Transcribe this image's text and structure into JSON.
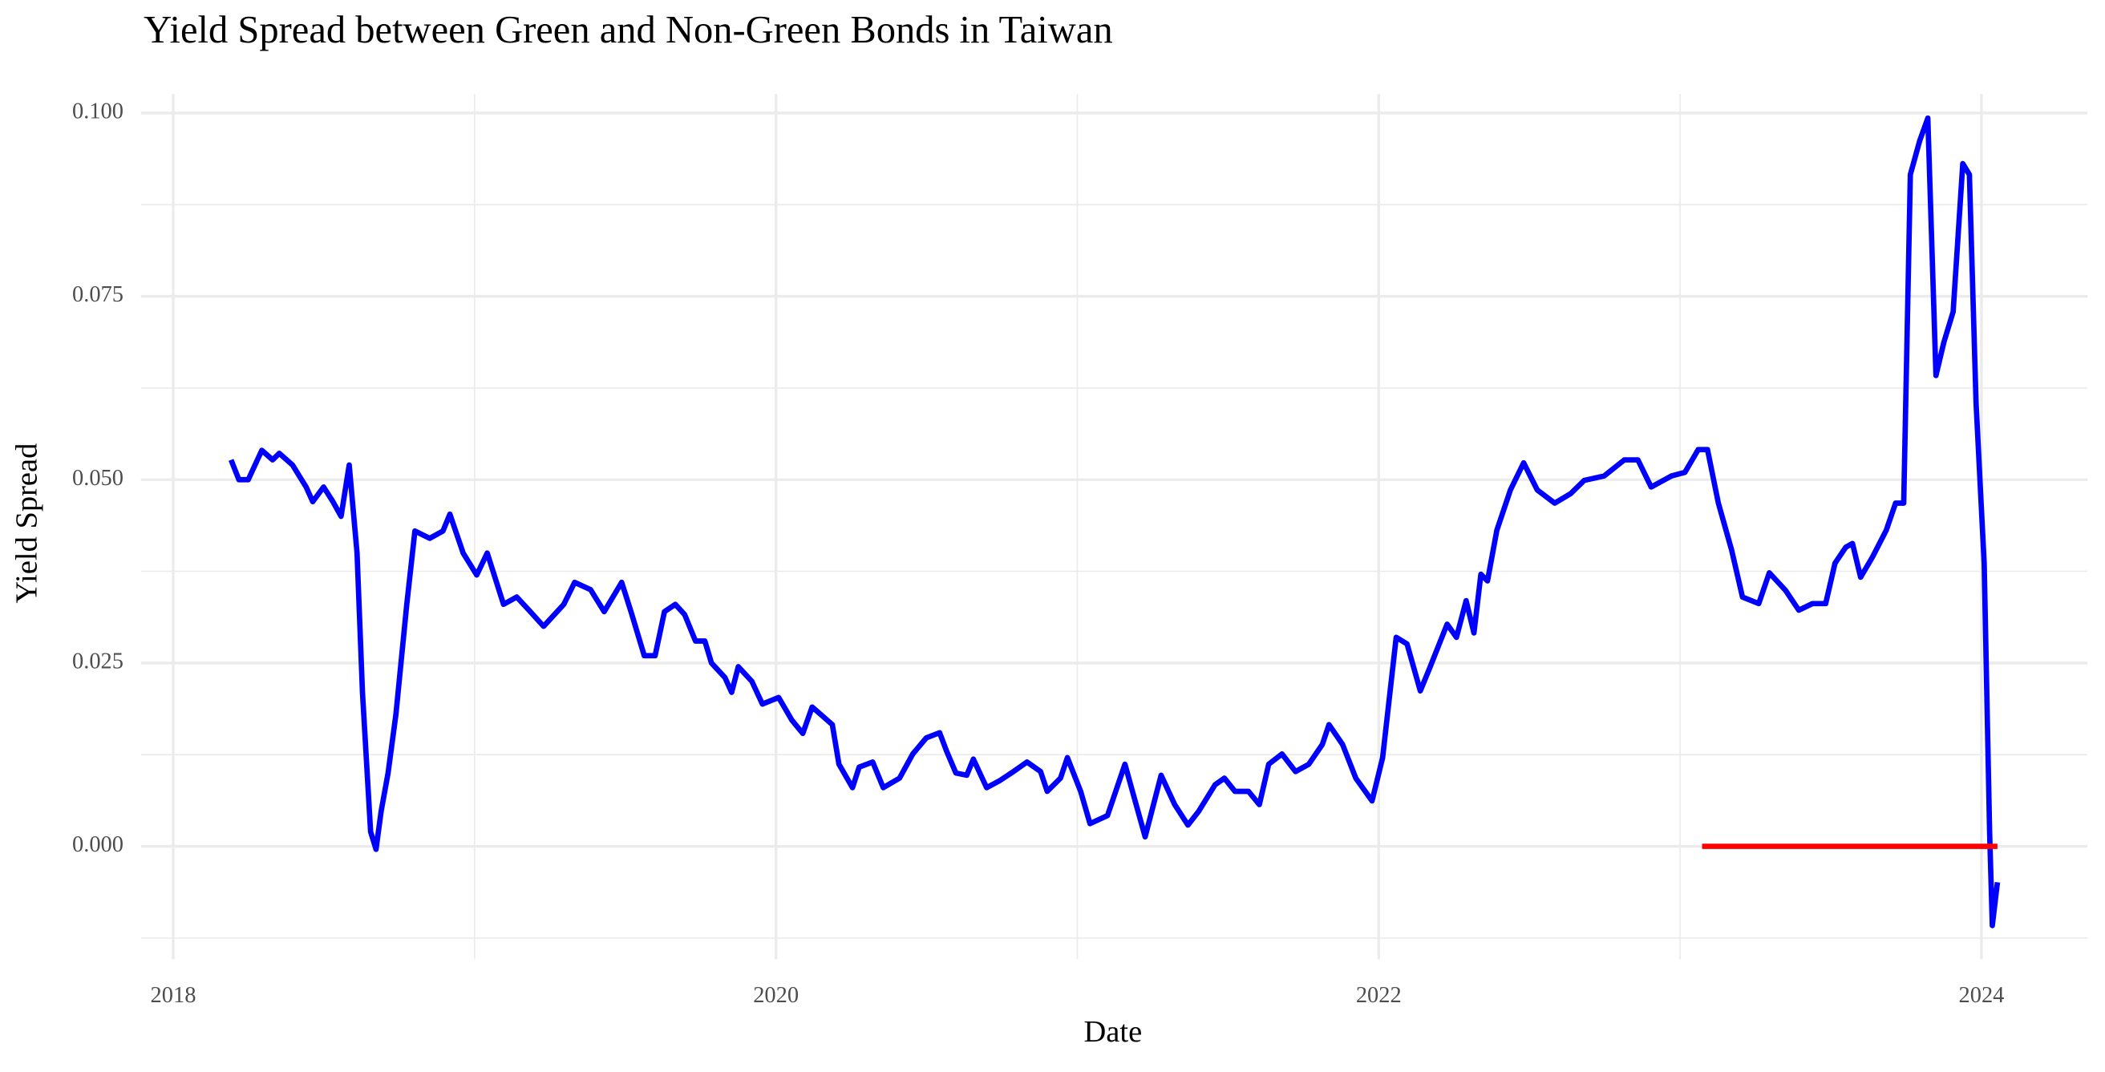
{
  "chart_data": {
    "type": "line",
    "title": "Yield Spread between Green and Non-Green Bonds in Taiwan",
    "xlabel": "Date",
    "ylabel": "Yield Spread",
    "grid": true,
    "xlim": [
      2017.893,
      2024.352
    ],
    "ylim": [
      -0.0154,
      0.1026
    ],
    "xticks": [
      2018,
      2020,
      2022,
      2024
    ],
    "minor_xticks": [
      2019,
      2021,
      2023
    ],
    "yticks": [
      {
        "value": 0,
        "label": "0.000"
      },
      0.025,
      {
        "value": 0.05,
        "label": "0.050"
      },
      0.075,
      {
        "value": 0.1,
        "label": "0.100"
      }
    ],
    "minor_yticks": [
      -0.0125,
      0.0125,
      0.0375,
      0.0625,
      0.0875
    ],
    "series": [
      {
        "color": "#0000ff",
        "x": [
          2018.192,
          2018.218,
          2018.249,
          2018.294,
          2018.33,
          2018.352,
          2018.396,
          2018.441,
          2018.463,
          2018.499,
          2018.53,
          2018.557,
          2018.584,
          2018.61,
          2018.628,
          2018.655,
          2018.673,
          2018.69,
          2018.713,
          2018.739,
          2018.775,
          2018.802,
          2018.851,
          2018.895,
          2018.918,
          2018.962,
          2019.007,
          2019.042,
          2019.096,
          2019.14,
          2019.185,
          2019.229,
          2019.296,
          2019.332,
          2019.385,
          2019.43,
          2019.488,
          2019.519,
          2019.563,
          2019.599,
          2019.63,
          2019.666,
          2019.697,
          2019.733,
          2019.764,
          2019.786,
          2019.831,
          2019.853,
          2019.875,
          2019.92,
          2019.955,
          2020.009,
          2020.053,
          2020.089,
          2020.12,
          2020.151,
          2020.187,
          2020.209,
          2020.254,
          2020.276,
          2020.321,
          2020.356,
          2020.41,
          2020.454,
          2020.499,
          2020.543,
          2020.566,
          2020.597,
          2020.633,
          2020.655,
          2020.699,
          2020.744,
          2020.788,
          2020.833,
          2020.878,
          2020.9,
          2020.944,
          2020.967,
          2021.011,
          2021.042,
          2021.1,
          2021.158,
          2021.189,
          2021.225,
          2021.278,
          2021.323,
          2021.367,
          2021.403,
          2021.457,
          2021.488,
          2021.523,
          2021.568,
          2021.604,
          2021.635,
          2021.679,
          2021.724,
          2021.768,
          2021.813,
          2021.835,
          2021.88,
          2021.924,
          2021.978,
          2022.013,
          2022.058,
          2022.094,
          2022.138,
          2022.169,
          2022.227,
          2022.258,
          2022.29,
          2022.316,
          2022.339,
          2022.361,
          2022.392,
          2022.437,
          2022.481,
          2022.526,
          2022.584,
          2022.637,
          2022.682,
          2022.748,
          2022.815,
          2022.86,
          2022.904,
          2022.971,
          2023.016,
          2023.06,
          2023.091,
          2023.127,
          2023.171,
          2023.207,
          2023.261,
          2023.296,
          2023.35,
          2023.394,
          2023.439,
          2023.483,
          2023.514,
          2023.55,
          2023.572,
          2023.599,
          2023.639,
          2023.684,
          2023.715,
          2023.742,
          2023.764,
          2023.795,
          2023.822,
          2023.849,
          2023.875,
          2023.906,
          2023.938,
          2023.96,
          2023.982,
          2024.009,
          2024.027,
          2024.036,
          2024.053
        ],
        "values": [
          0.0527,
          0.05,
          0.05,
          0.054,
          0.0527,
          0.0536,
          0.052,
          0.049,
          0.047,
          0.049,
          0.047,
          0.045,
          0.052,
          0.04,
          0.021,
          0.002,
          -0.0004,
          0.0048,
          0.01,
          0.018,
          0.033,
          0.043,
          0.042,
          0.043,
          0.0453,
          0.04,
          0.037,
          0.04,
          0.033,
          0.034,
          0.032,
          0.03,
          0.033,
          0.036,
          0.035,
          0.032,
          0.036,
          0.032,
          0.026,
          0.026,
          0.032,
          0.033,
          0.0316,
          0.028,
          0.028,
          0.025,
          0.023,
          0.021,
          0.0245,
          0.0225,
          0.0194,
          0.0203,
          0.0172,
          0.0154,
          0.019,
          0.0179,
          0.0166,
          0.0112,
          0.008,
          0.0108,
          0.0115,
          0.008,
          0.0093,
          0.0126,
          0.0148,
          0.0155,
          0.013,
          0.01,
          0.0097,
          0.0119,
          0.008,
          0.009,
          0.0102,
          0.0115,
          0.0102,
          0.0075,
          0.0093,
          0.0121,
          0.0075,
          0.0031,
          0.0042,
          0.0112,
          0.0066,
          0.0013,
          0.0097,
          0.0057,
          0.0029,
          0.0048,
          0.0084,
          0.0093,
          0.0075,
          0.0075,
          0.0057,
          0.0112,
          0.0126,
          0.0102,
          0.0112,
          0.0139,
          0.0166,
          0.0139,
          0.0093,
          0.0062,
          0.0121,
          0.0285,
          0.0276,
          0.0212,
          0.0243,
          0.0303,
          0.0285,
          0.0335,
          0.0291,
          0.0371,
          0.0362,
          0.0431,
          0.0486,
          0.0523,
          0.0486,
          0.0468,
          0.0481,
          0.0499,
          0.0505,
          0.0527,
          0.0527,
          0.049,
          0.0505,
          0.051,
          0.0541,
          0.0541,
          0.0468,
          0.0404,
          0.034,
          0.0331,
          0.0373,
          0.0349,
          0.0322,
          0.0331,
          0.0331,
          0.0386,
          0.0408,
          0.0413,
          0.0367,
          0.0395,
          0.0431,
          0.0468,
          0.0468,
          0.0916,
          0.0962,
          0.0993,
          0.0642,
          0.0687,
          0.0729,
          0.0931,
          0.0916,
          0.0605,
          0.0386,
          0.002,
          -0.0108,
          -0.0049
        ]
      },
      {
        "color": "#ff0000",
        "x": [
          2023.073,
          2024.053
        ],
        "values": [
          0,
          0
        ]
      }
    ]
  }
}
